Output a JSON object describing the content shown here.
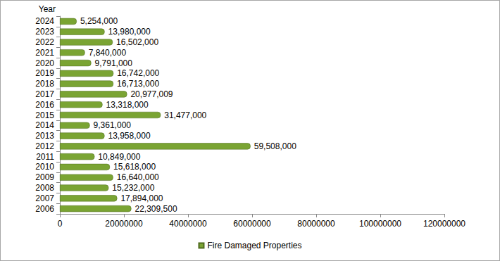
{
  "chart_data": {
    "type": "bar",
    "orientation": "horizontal",
    "ylabel": "Year",
    "categories": [
      "2006",
      "2007",
      "2008",
      "2009",
      "2010",
      "2011",
      "2012",
      "2013",
      "2014",
      "2015",
      "2016",
      "2017",
      "2018",
      "2019",
      "2020",
      "2021",
      "2022",
      "2023",
      "2024"
    ],
    "series": [
      {
        "name": "Fire Damaged Properties",
        "color": "#7aa433",
        "values": [
          22309500,
          17894000,
          15232000,
          16640000,
          15618000,
          10849000,
          59508000,
          13958000,
          9361000,
          31477000,
          13318000,
          20977009,
          16713000,
          16742000,
          9791000,
          7840000,
          16502000,
          13980000,
          5254000
        ],
        "value_labels": [
          "22,309,500",
          "17,894,000",
          "15,232,000",
          "16,640,000",
          "15,618,000",
          "10,849,000",
          "59,508,000",
          "13,958,000",
          "9,361,000",
          "31,477,000",
          "13,318,000",
          "20,977,009",
          "16,713,000",
          "16,742,000",
          "9,791,000",
          "7,840,000",
          "16,502,000",
          "13,980,000",
          "5,254,000"
        ]
      }
    ],
    "xlim": [
      0,
      120000000
    ],
    "xticks": [
      0,
      20000000,
      40000000,
      60000000,
      80000000,
      100000000,
      120000000
    ],
    "data_labels": true,
    "legend": "bottom",
    "grid": false
  }
}
